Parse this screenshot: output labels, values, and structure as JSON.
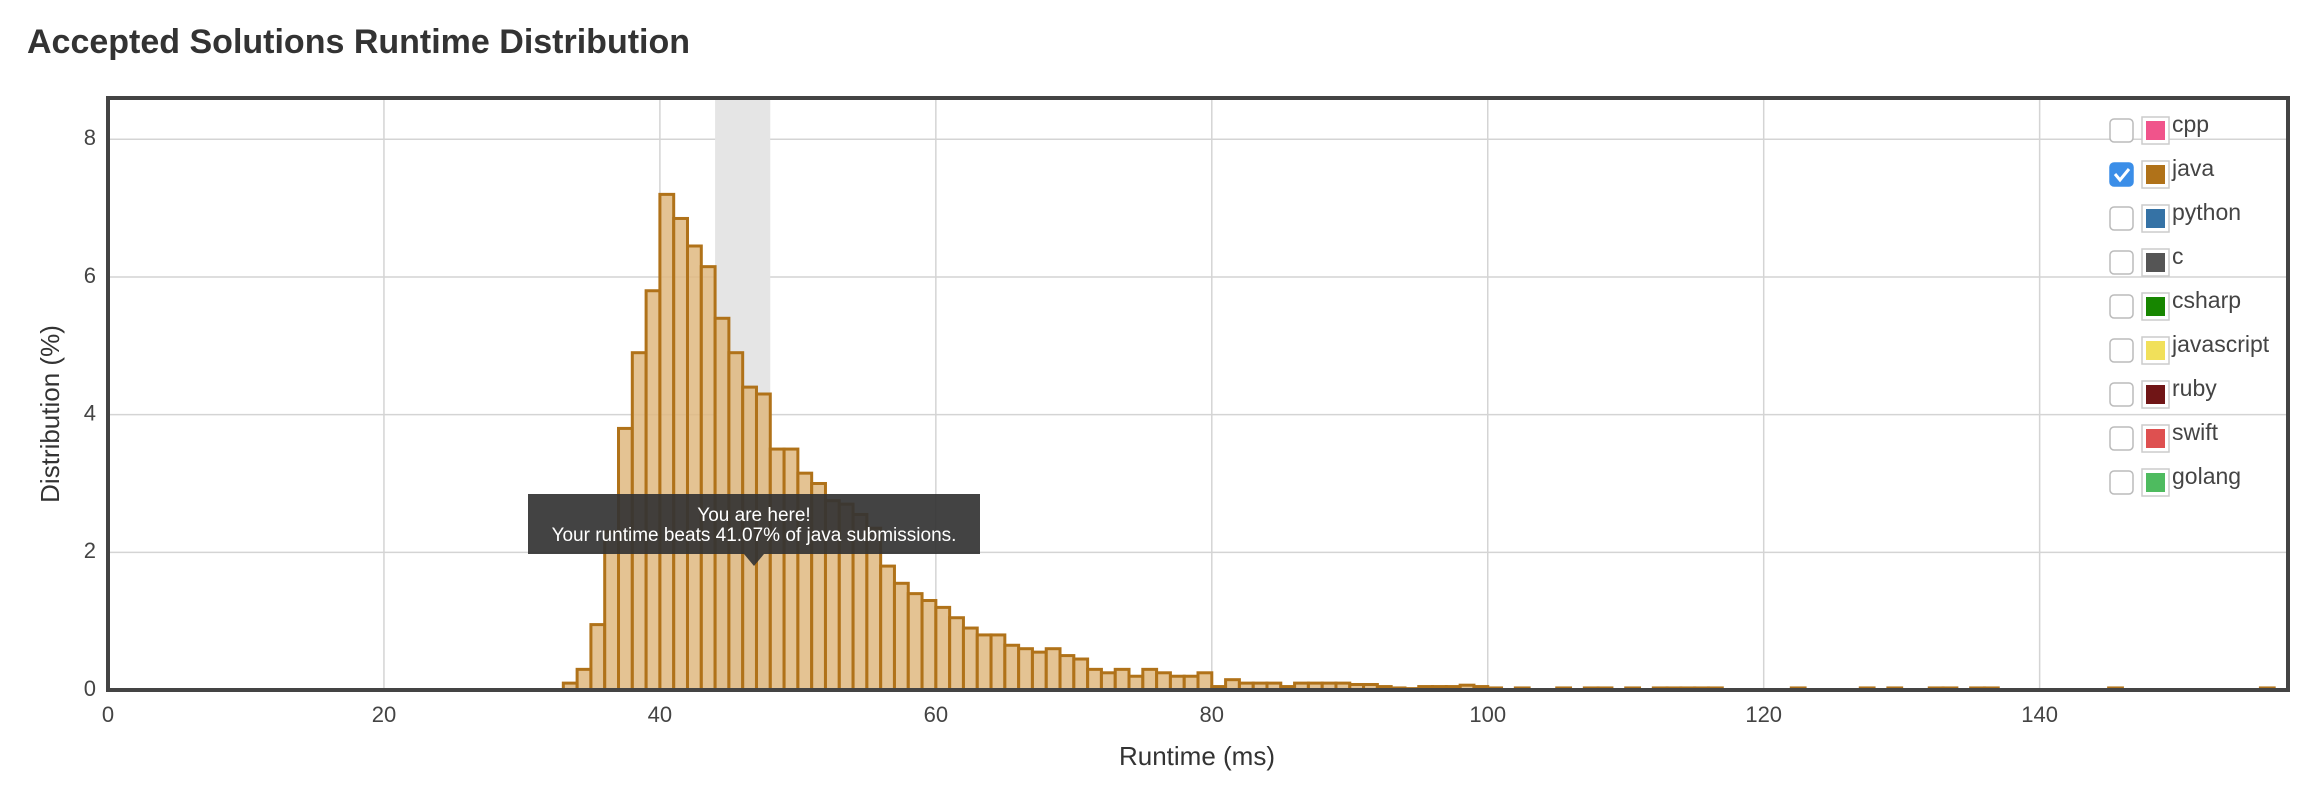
{
  "chart_data": {
    "type": "histogram",
    "title": "Accepted Solutions Runtime Distribution",
    "x_label": "Runtime (ms)",
    "y_label": "Distribution (%)",
    "xlim": [
      0,
      158
    ],
    "ylim": [
      0,
      8.6
    ],
    "xticks": [
      0,
      20,
      40,
      60,
      80,
      100,
      120,
      140
    ],
    "yticks": [
      0,
      2,
      4,
      6,
      8
    ],
    "grid": true,
    "highlight": [
      44,
      48
    ],
    "annotation": [
      "You are here!",
      "Your runtime beats 41.07% of java submissions."
    ],
    "series": [
      {
        "name": "java",
        "color": "#b07219",
        "fill": "#dfb880",
        "bins": [
          33,
          34,
          35,
          36,
          37,
          38,
          39,
          40,
          41,
          42,
          43,
          44,
          45,
          46,
          47,
          48,
          49,
          50,
          51,
          52,
          53,
          54,
          55,
          56,
          57,
          58,
          59,
          60,
          61,
          62,
          63,
          64,
          65,
          66,
          67,
          68,
          69,
          70,
          71,
          72,
          73,
          74,
          75,
          76,
          77,
          78,
          79,
          80,
          81,
          82,
          83,
          84,
          85,
          86,
          87,
          88,
          89,
          90,
          91,
          92,
          93,
          94,
          95,
          96,
          97,
          98,
          99,
          100,
          101,
          102,
          103,
          104,
          105,
          106,
          107,
          108,
          109,
          110,
          111,
          112,
          113,
          114,
          115,
          116,
          117,
          118,
          119,
          120,
          121,
          122,
          123,
          124,
          125,
          126,
          127,
          128,
          129,
          130,
          131,
          132,
          133,
          134,
          135,
          136,
          137,
          138,
          139,
          140,
          141,
          142,
          143,
          144,
          145,
          146,
          147,
          148,
          149,
          150,
          151,
          152,
          153,
          154,
          155,
          156,
          157
        ],
        "values": [
          0.1,
          0.3,
          0.95,
          2.3,
          3.8,
          4.9,
          5.8,
          7.2,
          6.85,
          6.45,
          6.15,
          5.4,
          4.9,
          4.4,
          4.3,
          3.5,
          3.5,
          3.15,
          3.0,
          2.75,
          2.7,
          2.55,
          2.35,
          1.8,
          1.55,
          1.4,
          1.3,
          1.2,
          1.05,
          0.9,
          0.8,
          0.8,
          0.65,
          0.6,
          0.55,
          0.6,
          0.5,
          0.45,
          0.3,
          0.25,
          0.3,
          0.2,
          0.3,
          0.25,
          0.2,
          0.2,
          0.25,
          0.05,
          0.15,
          0.1,
          0.1,
          0.1,
          0.05,
          0.1,
          0.1,
          0.1,
          0.1,
          0.08,
          0.08,
          0.05,
          0.03,
          0.02,
          0.05,
          0.05,
          0.05,
          0.07,
          0.05,
          0.03,
          0,
          0.03,
          0,
          0,
          0.03,
          0,
          0.03,
          0.03,
          0,
          0.03,
          0,
          0.03,
          0.03,
          0.03,
          0.03,
          0.03,
          0,
          0,
          0,
          0,
          0,
          0.03,
          0,
          0,
          0,
          0,
          0.03,
          0,
          0.03,
          0,
          0,
          0.03,
          0.03,
          0,
          0.03,
          0.03,
          0,
          0,
          0,
          0,
          0,
          0,
          0,
          0,
          0.03,
          0,
          0,
          0,
          0,
          0,
          0,
          0,
          0,
          0,
          0,
          0.03
        ]
      }
    ],
    "legend": [
      {
        "name": "cpp",
        "color": "#f0548b",
        "checked": false
      },
      {
        "name": "java",
        "color": "#b07219",
        "checked": true
      },
      {
        "name": "python",
        "color": "#3572a5",
        "checked": false
      },
      {
        "name": "c",
        "color": "#555555",
        "checked": false
      },
      {
        "name": "csharp",
        "color": "#178600",
        "checked": false
      },
      {
        "name": "javascript",
        "color": "#f1e05a",
        "checked": false
      },
      {
        "name": "ruby",
        "color": "#701516",
        "checked": false
      },
      {
        "name": "swift",
        "color": "#de5050",
        "checked": false
      },
      {
        "name": "golang",
        "color": "#4ebb5f",
        "checked": false
      }
    ]
  }
}
